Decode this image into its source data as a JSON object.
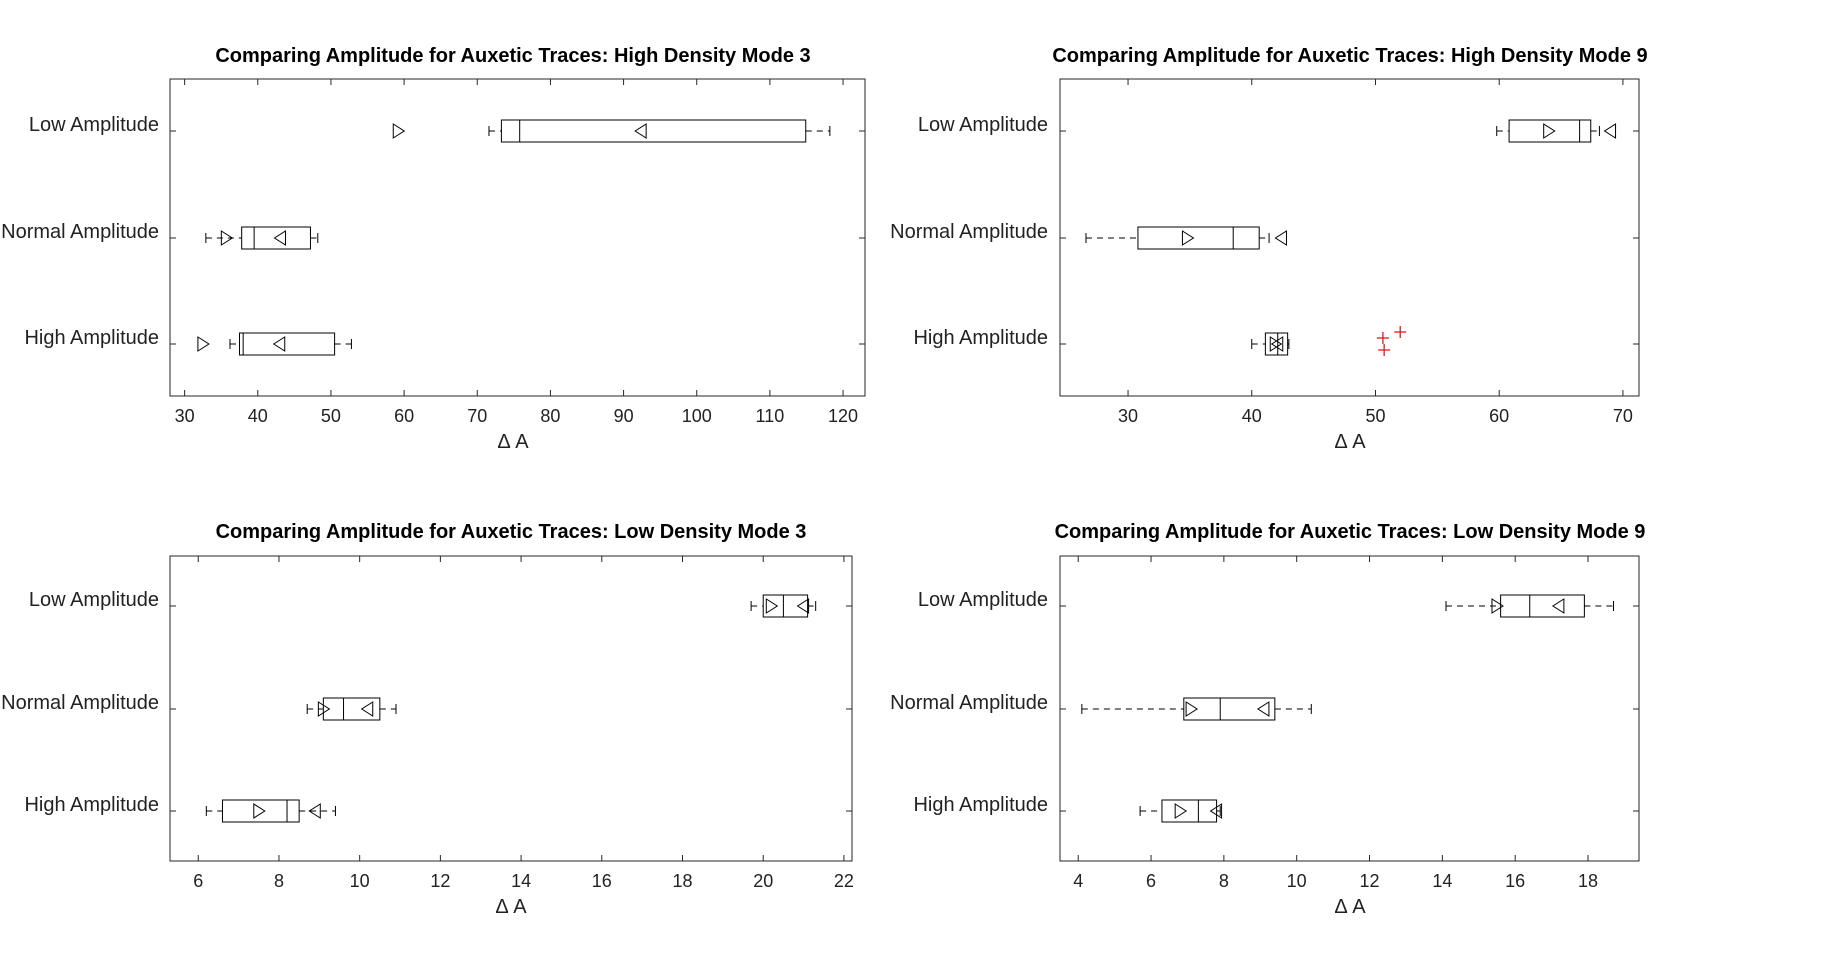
{
  "colors": {
    "box": "#000000",
    "outlier": "#e0191b",
    "axis": "#262626"
  },
  "chart_data": [
    {
      "type": "box",
      "title": "Comparing Amplitude for Auxetic Traces: High Density Mode 3",
      "xlabel": "Δ A",
      "xlim": [
        28,
        123
      ],
      "xticks": [
        30,
        40,
        50,
        60,
        70,
        80,
        90,
        100,
        110,
        120
      ],
      "grid": false,
      "categories": [
        "Low Amplitude",
        "Normal Amplitude",
        "High Amplitude"
      ],
      "boxes": [
        {
          "label": "Low Amplitude",
          "whisker_low": 71.6,
          "q1": 73.3,
          "median": 75.8,
          "q3": 114.9,
          "whisker_high": 118.2,
          "mean": 92.4,
          "mean_pos_marker": 59.2,
          "outliers": []
        },
        {
          "label": "Normal Amplitude",
          "whisker_low": 32.9,
          "q1": 37.8,
          "median": 39.5,
          "q3": 47.2,
          "whisker_high": 48.2,
          "mean": 43.1,
          "mean_pos_marker": 35.7,
          "outliers": []
        },
        {
          "label": "High Amplitude",
          "whisker_low": 36.2,
          "q1": 37.5,
          "median": 38.0,
          "q3": 50.5,
          "whisker_high": 52.8,
          "mean": 43.0,
          "mean_pos_marker": 32.5,
          "outliers": []
        }
      ]
    },
    {
      "type": "box",
      "title": "Comparing Amplitude for Auxetic Traces: High Density Mode 9",
      "xlabel": "Δ A",
      "xlim": [
        24.5,
        71.3
      ],
      "xticks": [
        30,
        40,
        50,
        60,
        70
      ],
      "grid": false,
      "categories": [
        "Low Amplitude",
        "Normal Amplitude",
        "High Amplitude"
      ],
      "boxes": [
        {
          "label": "Low Amplitude",
          "whisker_low": 59.8,
          "q1": 60.8,
          "median": 66.5,
          "q3": 67.4,
          "whisker_high": 68.1,
          "mean": 69.0,
          "mean_pos_marker": 64.0,
          "outliers": []
        },
        {
          "label": "Normal Amplitude",
          "whisker_low": 26.6,
          "q1": 30.8,
          "median": 38.5,
          "q3": 40.6,
          "whisker_high": 41.4,
          "mean": 42.4,
          "mean_pos_marker": 34.8,
          "outliers": []
        },
        {
          "label": "High Amplitude",
          "whisker_low": 40.0,
          "q1": 41.1,
          "median": 42.1,
          "q3": 42.9,
          "whisker_high": 43.0,
          "mean": 42.1,
          "mean_pos_marker": 41.9,
          "outliers": [
            50.6,
            50.7,
            52.0
          ]
        }
      ]
    },
    {
      "type": "box",
      "title": "Comparing Amplitude for Auxetic Traces: Low Density Mode 3",
      "xlabel": "Δ A",
      "xlim": [
        5.3,
        22.2
      ],
      "xticks": [
        6,
        8,
        10,
        12,
        14,
        16,
        18,
        20,
        22
      ],
      "grid": false,
      "categories": [
        "Low Amplitude",
        "Normal Amplitude",
        "High Amplitude"
      ],
      "boxes": [
        {
          "label": "Low Amplitude",
          "whisker_low": 19.7,
          "q1": 20.0,
          "median": 20.5,
          "q3": 21.1,
          "whisker_high": 21.3,
          "mean": 21.0,
          "mean_pos_marker": 20.2,
          "outliers": []
        },
        {
          "label": "Normal Amplitude",
          "whisker_low": 8.7,
          "q1": 9.1,
          "median": 9.6,
          "q3": 10.5,
          "whisker_high": 10.9,
          "mean": 10.2,
          "mean_pos_marker": 9.1,
          "outliers": []
        },
        {
          "label": "High Amplitude",
          "whisker_low": 6.2,
          "q1": 6.6,
          "median": 8.2,
          "q3": 8.5,
          "whisker_high": 9.4,
          "mean": 8.9,
          "mean_pos_marker": 7.5,
          "outliers": []
        }
      ]
    },
    {
      "type": "box",
      "title": "Comparing Amplitude for Auxetic Traces: Low Density Mode 9",
      "xlabel": "Δ A",
      "xlim": [
        3.5,
        19.4
      ],
      "xticks": [
        4,
        6,
        8,
        10,
        12,
        14,
        16,
        18
      ],
      "grid": false,
      "categories": [
        "Low Amplitude",
        "Normal Amplitude",
        "High Amplitude"
      ],
      "boxes": [
        {
          "label": "Low Amplitude",
          "whisker_low": 14.1,
          "q1": 15.6,
          "median": 16.4,
          "q3": 17.9,
          "whisker_high": 18.7,
          "mean": 17.2,
          "mean_pos_marker": 15.5,
          "outliers": []
        },
        {
          "label": "Normal Amplitude",
          "whisker_low": 4.1,
          "q1": 6.9,
          "median": 7.9,
          "q3": 9.4,
          "whisker_high": 10.4,
          "mean": 9.1,
          "mean_pos_marker": 7.1,
          "outliers": []
        },
        {
          "label": "High Amplitude",
          "whisker_low": 5.7,
          "q1": 6.3,
          "median": 7.3,
          "q3": 7.8,
          "whisker_high": 7.9,
          "mean": 7.8,
          "mean_pos_marker": 6.8,
          "outliers": []
        }
      ]
    }
  ]
}
